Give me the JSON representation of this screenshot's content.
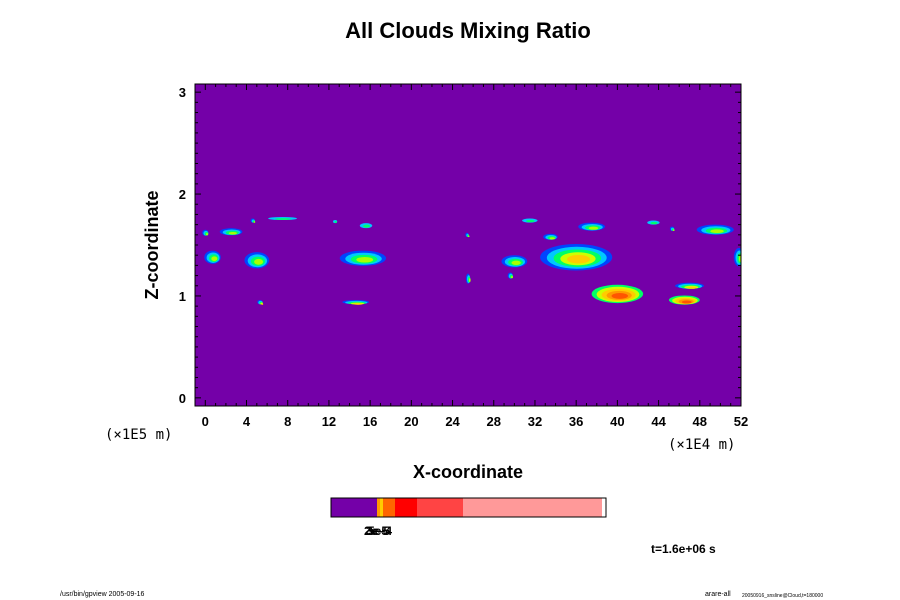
{
  "chart_data": {
    "type": "heatmap",
    "title": "All Clouds Mixing Ratio",
    "xlabel": "X-coordinate",
    "ylabel": "Z-coordinate",
    "x_scale_label": "(×1E4 m)",
    "y_scale_label": "(×1E5 m)",
    "xlim": [
      -1,
      52
    ],
    "ylim": [
      -0.08,
      3.08
    ],
    "x_ticks": [
      "0",
      "4",
      "8",
      "12",
      "16",
      "20",
      "24",
      "28",
      "32",
      "36",
      "40",
      "44",
      "48",
      "52"
    ],
    "y_ticks": [
      "0",
      "1",
      "2",
      "3"
    ],
    "background_color": "#7400A8",
    "colorbar": {
      "colors": [
        "#7400A8",
        "#FF9900",
        "#FFCC00",
        "#FF6600",
        "#FF0000",
        "#FF4444",
        "#FF9999"
      ],
      "tick_labels_overlapping": [
        "2e-5",
        "3e-5",
        "5e-4"
      ]
    },
    "cloud_features": [
      {
        "x": 0.0,
        "z": 1.62,
        "w": 0.6,
        "h": 0.06,
        "intensity": "low"
      },
      {
        "x": 2.5,
        "z": 1.63,
        "w": 2.2,
        "h": 0.07,
        "intensity": "low"
      },
      {
        "x": 4.6,
        "z": 1.74,
        "w": 0.4,
        "h": 0.04,
        "intensity": "low"
      },
      {
        "x": 0.7,
        "z": 1.38,
        "w": 1.6,
        "h": 0.13,
        "intensity": "low"
      },
      {
        "x": 5.0,
        "z": 1.35,
        "w": 2.4,
        "h": 0.16,
        "intensity": "low"
      },
      {
        "x": 5.3,
        "z": 0.94,
        "w": 0.5,
        "h": 0.04,
        "intensity": "mid"
      },
      {
        "x": 7.5,
        "z": 1.76,
        "w": 2.8,
        "h": 0.03,
        "intensity": "trace"
      },
      {
        "x": 12.6,
        "z": 1.73,
        "w": 0.4,
        "h": 0.03,
        "intensity": "trace"
      },
      {
        "x": 15.6,
        "z": 1.69,
        "w": 1.2,
        "h": 0.05,
        "intensity": "trace"
      },
      {
        "x": 15.3,
        "z": 1.37,
        "w": 4.5,
        "h": 0.15,
        "intensity": "low"
      },
      {
        "x": 14.6,
        "z": 0.94,
        "w": 2.6,
        "h": 0.04,
        "intensity": "mid"
      },
      {
        "x": 25.4,
        "z": 1.6,
        "w": 0.3,
        "h": 0.04,
        "intensity": "low"
      },
      {
        "x": 25.5,
        "z": 1.17,
        "w": 0.4,
        "h": 0.1,
        "intensity": "low"
      },
      {
        "x": 30.0,
        "z": 1.34,
        "w": 2.5,
        "h": 0.12,
        "intensity": "low"
      },
      {
        "x": 29.6,
        "z": 1.2,
        "w": 0.5,
        "h": 0.06,
        "intensity": "low"
      },
      {
        "x": 31.5,
        "z": 1.74,
        "w": 1.5,
        "h": 0.04,
        "intensity": "trace"
      },
      {
        "x": 33.5,
        "z": 1.58,
        "w": 1.4,
        "h": 0.06,
        "intensity": "low"
      },
      {
        "x": 37.5,
        "z": 1.68,
        "w": 2.6,
        "h": 0.08,
        "intensity": "low"
      },
      {
        "x": 36.0,
        "z": 1.38,
        "w": 7.0,
        "h": 0.26,
        "intensity": "mid"
      },
      {
        "x": 40.0,
        "z": 1.02,
        "w": 5.0,
        "h": 0.18,
        "intensity": "high"
      },
      {
        "x": 46.5,
        "z": 0.96,
        "w": 3.0,
        "h": 0.09,
        "intensity": "high"
      },
      {
        "x": 47.0,
        "z": 1.1,
        "w": 2.8,
        "h": 0.06,
        "intensity": "mid"
      },
      {
        "x": 43.5,
        "z": 1.72,
        "w": 1.2,
        "h": 0.04,
        "intensity": "trace"
      },
      {
        "x": 45.3,
        "z": 1.66,
        "w": 0.4,
        "h": 0.04,
        "intensity": "low"
      },
      {
        "x": 49.5,
        "z": 1.65,
        "w": 3.6,
        "h": 0.1,
        "intensity": "low"
      },
      {
        "x": 51.8,
        "z": 1.38,
        "w": 1.0,
        "h": 0.18,
        "intensity": "low"
      }
    ]
  },
  "annotations": {
    "time_label": "t=1.6e+06 s",
    "footer_left": "/usr/bin/gpview 2005-09-16",
    "footer_right_a": "arare-all",
    "footer_right_b": "20050916_snsline@Cloud,t=180000"
  }
}
